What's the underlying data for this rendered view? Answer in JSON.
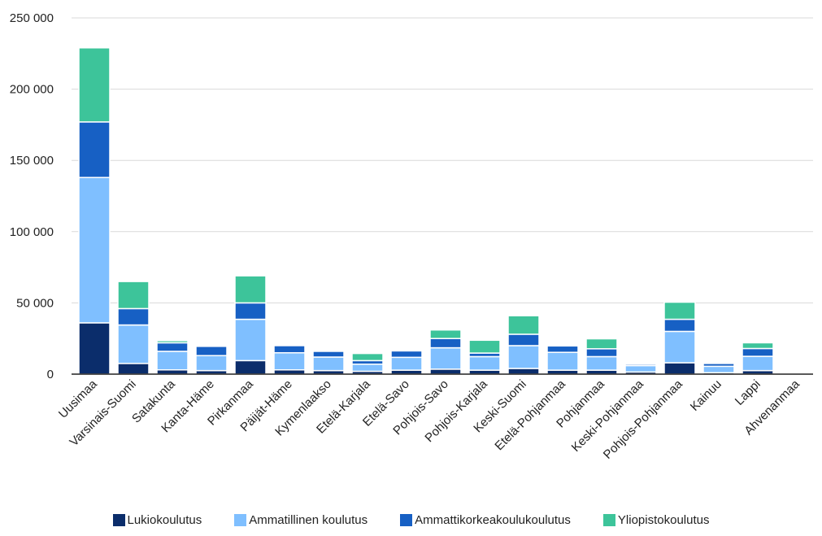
{
  "chart_data": {
    "type": "bar",
    "stacked": true,
    "title": "",
    "xlabel": "",
    "ylabel": "",
    "ylim": [
      0,
      250000
    ],
    "yticks": [
      0,
      50000,
      100000,
      150000,
      200000,
      250000
    ],
    "ytick_labels": [
      "0",
      "50 000",
      "100 000",
      "150 000",
      "200 000",
      "250 000"
    ],
    "grid": "horizontal",
    "legend_position": "bottom",
    "categories": [
      "Uusimaa",
      "Varsinais-Suomi",
      "Satakunta",
      "Kanta-Häme",
      "Pirkanmaa",
      "Päijät-Häme",
      "Kymenlaakso",
      "Etelä-Karjala",
      "Etelä-Savo",
      "Pohjois-Savo",
      "Pohjois-Karjala",
      "Keski-Suomi",
      "Etelä-Pohjanmaa",
      "Pohjanmaa",
      "Keski-Pohjanmaa",
      "Pohjois-Pohjanmaa",
      "Kainuu",
      "Lappi",
      "Ahvenanmaa"
    ],
    "series": [
      {
        "name": "Lukiokoulutus",
        "color": "#0b2d6b",
        "values": [
          36000,
          7500,
          3000,
          2500,
          9500,
          3000,
          2500,
          2000,
          2800,
          3500,
          2800,
          4000,
          2800,
          2800,
          1500,
          8000,
          1000,
          2500,
          0
        ]
      },
      {
        "name": "Ammatillinen koulutus",
        "color": "#7fbfff",
        "values": [
          102000,
          27000,
          13000,
          10500,
          29000,
          12000,
          9500,
          5000,
          9000,
          15000,
          9500,
          16000,
          12500,
          9500,
          4500,
          22000,
          4500,
          10000,
          0
        ]
      },
      {
        "name": "Ammattikorkeakoulukoulutus",
        "color": "#1760c4",
        "values": [
          39000,
          11500,
          6000,
          6500,
          11500,
          5000,
          4000,
          2500,
          4500,
          6500,
          2500,
          8000,
          4500,
          5500,
          1000,
          8500,
          2000,
          5500,
          0
        ]
      },
      {
        "name": "Yliopistokoulutus",
        "color": "#3dc49a",
        "values": [
          52000,
          19000,
          1500,
          0,
          19000,
          0,
          0,
          5000,
          0,
          6000,
          9000,
          13000,
          0,
          7000,
          500,
          12000,
          0,
          4000,
          0
        ]
      }
    ]
  }
}
